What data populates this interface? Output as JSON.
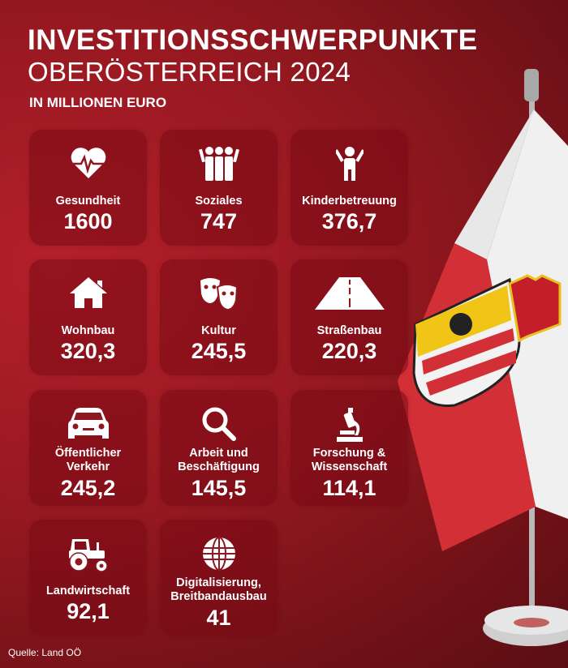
{
  "header": {
    "title": "INVESTITIONSSCHWERPUNKTE",
    "subtitle": "OBERÖSTERREICH 2024",
    "unit": "IN MILLIONEN EURO"
  },
  "cards": [
    {
      "label": "Gesundheit",
      "value": "1600",
      "icon": "heart-pulse-icon"
    },
    {
      "label": "Soziales",
      "value": "747",
      "icon": "people-group-icon"
    },
    {
      "label": "Kinderbetreuung",
      "value": "376,7",
      "icon": "child-icon"
    },
    {
      "label": "Wohnbau",
      "value": "320,3",
      "icon": "house-icon"
    },
    {
      "label": "Kultur",
      "value": "245,5",
      "icon": "theater-masks-icon"
    },
    {
      "label": "Straßenbau",
      "value": "220,3",
      "icon": "road-icon"
    },
    {
      "label": "Öffentlicher Verkehr",
      "value": "245,2",
      "icon": "car-icon"
    },
    {
      "label": "Arbeit und Beschäftigung",
      "value": "145,5",
      "icon": "magnifier-icon"
    },
    {
      "label": "Forschung & Wissenschaft",
      "value": "114,1",
      "icon": "microscope-icon"
    },
    {
      "label": "Landwirtschaft",
      "value": "92,1",
      "icon": "tractor-icon"
    },
    {
      "label": "Digitalisierung, Breitbandausbau",
      "value": "41",
      "icon": "globe-icon"
    }
  ],
  "source": "Quelle: Land OÖ",
  "colors": {
    "background": "#951820",
    "flag_red": "#d32f36",
    "flag_white": "#f2f2f2"
  }
}
